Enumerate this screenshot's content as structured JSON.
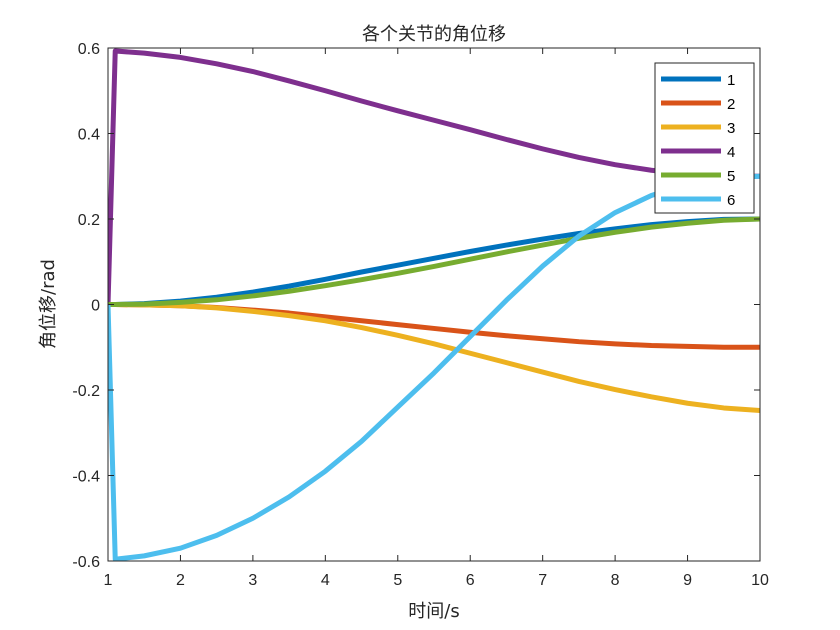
{
  "chart_data": {
    "type": "line",
    "title": "各个关节的角位移",
    "xlabel": "时间/s",
    "ylabel": "角位移/rad",
    "xlim": [
      1,
      10
    ],
    "ylim": [
      -0.6,
      0.6
    ],
    "x_ticks": [
      1,
      2,
      3,
      4,
      5,
      6,
      7,
      8,
      9,
      10
    ],
    "y_ticks": [
      -0.6,
      -0.4,
      -0.2,
      0,
      0.2,
      0.4,
      0.6
    ],
    "y_tick_labels": [
      "-0.6",
      "-0.4",
      "-0.2",
      "0",
      "0.2",
      "0.4",
      "0.6"
    ],
    "grid": false,
    "legend_position": "top-right",
    "x": [
      1,
      1.1,
      1.5,
      2,
      2.5,
      3,
      3.5,
      4,
      4.5,
      5,
      5.5,
      6,
      6.5,
      7,
      7.5,
      8,
      8.5,
      9,
      9.5,
      10
    ],
    "series": [
      {
        "name": "1",
        "color": "#0072BD",
        "values": [
          0,
          0.0,
          0.002,
          0.008,
          0.017,
          0.029,
          0.043,
          0.059,
          0.076,
          0.092,
          0.108,
          0.124,
          0.139,
          0.153,
          0.166,
          0.177,
          0.187,
          0.194,
          0.199,
          0.2
        ]
      },
      {
        "name": "2",
        "color": "#D95319",
        "values": [
          0,
          0.0,
          -0.001,
          -0.003,
          -0.007,
          -0.013,
          -0.02,
          -0.029,
          -0.038,
          -0.047,
          -0.056,
          -0.065,
          -0.073,
          -0.08,
          -0.087,
          -0.092,
          -0.096,
          -0.098,
          -0.1,
          -0.1
        ]
      },
      {
        "name": "3",
        "color": "#EDB120",
        "values": [
          0,
          0.0,
          -0.001,
          -0.003,
          -0.008,
          -0.016,
          -0.026,
          -0.038,
          -0.054,
          -0.072,
          -0.092,
          -0.114,
          -0.136,
          -0.158,
          -0.18,
          -0.199,
          -0.216,
          -0.231,
          -0.242,
          -0.248
        ]
      },
      {
        "name": "4",
        "color": "#7E2F8E",
        "values": [
          0,
          0.593,
          0.588,
          0.578,
          0.563,
          0.545,
          0.523,
          0.5,
          0.476,
          0.453,
          0.431,
          0.409,
          0.386,
          0.364,
          0.344,
          0.327,
          0.314,
          0.305,
          0.301,
          0.3
        ]
      },
      {
        "name": "5",
        "color": "#77AC30",
        "values": [
          0,
          0.0,
          0.001,
          0.005,
          0.011,
          0.02,
          0.031,
          0.044,
          0.058,
          0.073,
          0.089,
          0.106,
          0.123,
          0.139,
          0.155,
          0.169,
          0.181,
          0.19,
          0.197,
          0.2
        ]
      },
      {
        "name": "6",
        "color": "#4DBEEE",
        "values": [
          0,
          -0.596,
          -0.588,
          -0.57,
          -0.54,
          -0.5,
          -0.45,
          -0.39,
          -0.32,
          -0.24,
          -0.16,
          -0.075,
          0.01,
          0.09,
          0.16,
          0.215,
          0.255,
          0.282,
          0.296,
          0.3
        ]
      }
    ]
  }
}
